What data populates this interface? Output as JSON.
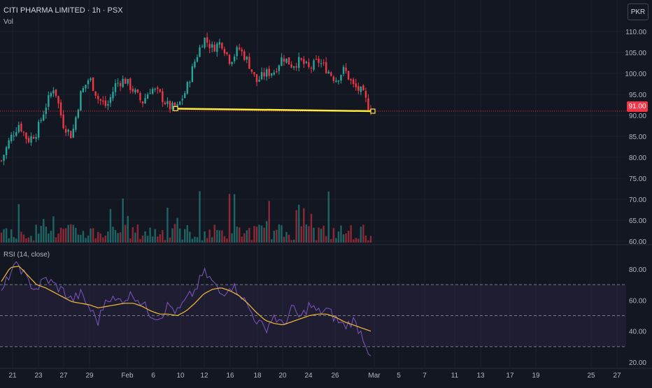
{
  "header": {
    "title": "CITI PHARMA LIMITED · 1h · PSX",
    "vol_label": "Vol",
    "rsi_label": "RSI (14, close)",
    "currency_button": "PKR",
    "last_price_tag": "91.00"
  },
  "colors": {
    "up": "#26a69a",
    "down": "#f23645",
    "rsi_line": "#7e57c2",
    "rsi_ma": "#f5bc35",
    "trendline": "#ffeb3b",
    "background": "#131722"
  },
  "chart_data": [
    {
      "type": "candlestick",
      "title": "CITI PHARMA LIMITED · 1h · PSX",
      "ylim": [
        60,
        112
      ],
      "y_ticks": [
        "110.00",
        "105.00",
        "100.00",
        "95.00",
        "90.00",
        "85.00",
        "80.00",
        "75.00",
        "70.00",
        "65.00",
        "60.00"
      ],
      "x_ticks": [
        "21",
        "23",
        "27",
        "29",
        "Feb",
        "6",
        "10",
        "12",
        "16",
        "18",
        "20",
        "24",
        "26",
        "Mar",
        "5",
        "7",
        "11",
        "13",
        "17",
        "19",
        "25",
        "27"
      ],
      "last_price": 91.0,
      "grid": true,
      "trendline": {
        "start_value": 91.6,
        "end_value": 91.0
      },
      "close_path": [
        79.2,
        84.5,
        88.0,
        84.0,
        86.0,
        92.0,
        97.0,
        88.0,
        85.0,
        95.0,
        99.0,
        94.0,
        92.0,
        97.5,
        98.5,
        96.0,
        93.0,
        96.5,
        95.0,
        92.0,
        91.8,
        96.0,
        103.0,
        108.5,
        106.0,
        107.5,
        103.0,
        106.0,
        103.0,
        98.0,
        100.0,
        100.5,
        104.0,
        102.0,
        103.0,
        101.0,
        103.0,
        101.0,
        98.5,
        101.0,
        97.0,
        95.5,
        91.0
      ]
    },
    {
      "type": "bar",
      "title": "Vol",
      "description": "volume bars, colored by candle direction",
      "values": []
    },
    {
      "type": "line",
      "title": "RSI (14, close)",
      "ylim": [
        18,
        86
      ],
      "y_ticks": [
        "80.00",
        "60.00",
        "40.00",
        "20.00"
      ],
      "bands": {
        "upper": 70,
        "middle": 50,
        "lower": 30
      },
      "rsi_path": [
        64,
        78,
        83,
        72,
        67,
        74,
        70,
        66,
        60,
        64,
        55,
        46,
        63,
        59,
        61,
        64,
        58,
        51,
        49,
        57,
        52,
        60,
        66,
        78,
        72,
        63,
        70,
        66,
        56,
        47,
        41,
        50,
        43,
        55,
        48,
        57,
        52,
        54,
        48,
        43,
        47,
        38,
        24
      ],
      "ma_path": [
        72,
        81,
        82,
        76,
        70,
        68,
        65,
        62,
        59,
        58,
        57,
        55,
        56,
        57,
        58,
        58,
        56,
        53,
        51,
        51,
        50,
        53,
        58,
        64,
        67,
        68,
        66,
        63,
        58,
        52,
        47,
        45,
        44,
        46,
        48,
        50,
        51,
        51,
        49,
        46,
        44,
        42,
        40
      ]
    }
  ]
}
